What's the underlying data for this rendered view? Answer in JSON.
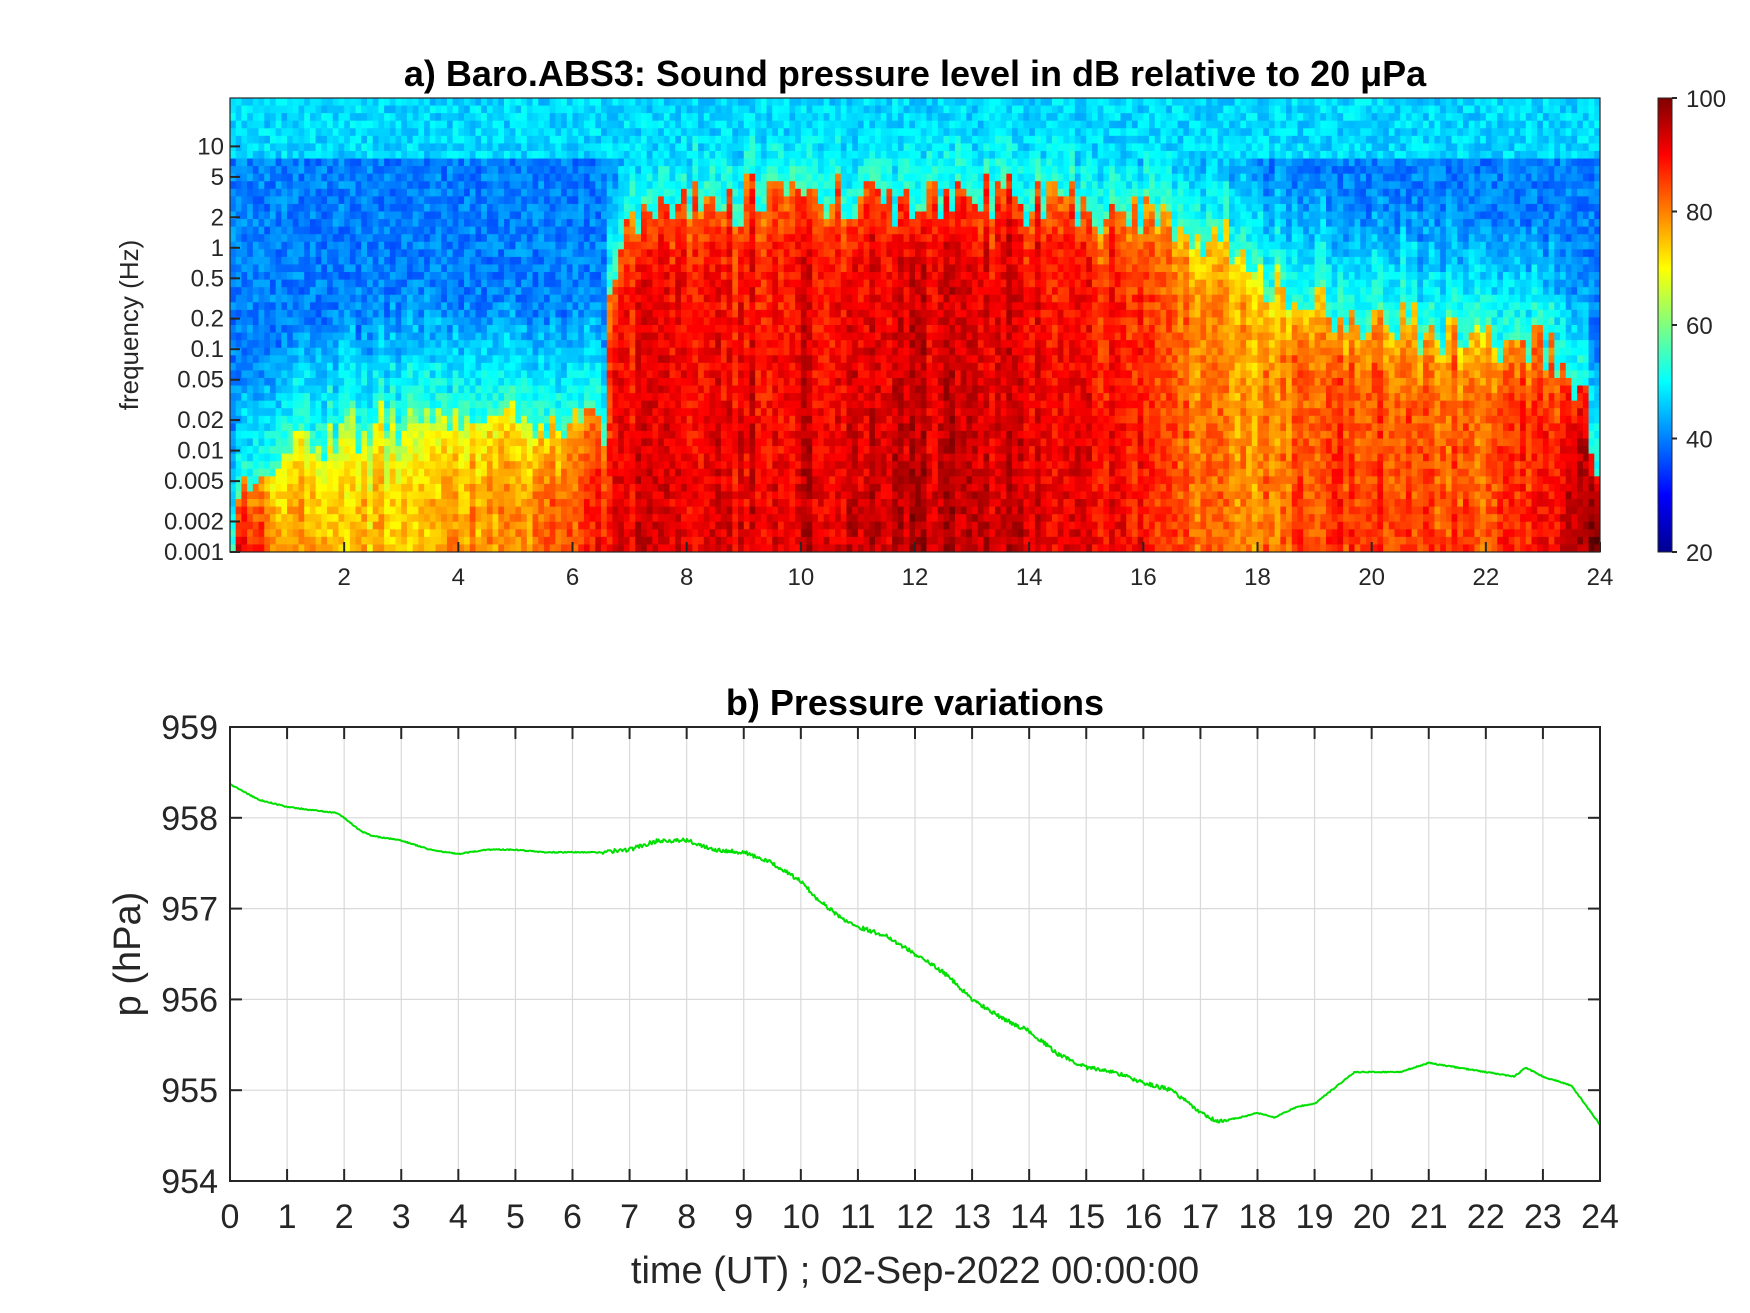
{
  "panel_a": {
    "title": "a) Baro.ABS3: Sound pressure level in dB relative to 20 μPa",
    "ylabel": "frequency (Hz)",
    "colorbar_ticks": [
      "100",
      "80",
      "60",
      "40",
      "20"
    ],
    "colormap": "jet"
  },
  "panel_b": {
    "title": "b) Pressure variations",
    "ylabel": "p (hPa)",
    "xlabel": "time (UT) ; 02-Sep-2022 00:00:00",
    "line_color": "#00e000"
  },
  "chart_data": [
    {
      "type": "heatmap",
      "title": "a) Baro.ABS3: Sound pressure level in dB relative to 20 μPa",
      "xlabel": "",
      "ylabel": "frequency (Hz)",
      "x_ticks": [
        "2",
        "4",
        "6",
        "8",
        "10",
        "12",
        "14",
        "16",
        "18",
        "20",
        "22",
        "24"
      ],
      "y_ticks": [
        "10",
        "5",
        "2",
        "1",
        "0.5",
        "0.2",
        "0.1",
        "0.05",
        "0.02",
        "0.01",
        "0.005",
        "0.002",
        "0.001"
      ],
      "xlim": [
        0,
        24
      ],
      "ylim": [
        0.001,
        30
      ],
      "y_scale": "log",
      "colorbar": {
        "range": [
          20,
          100
        ],
        "ticks": [
          100,
          80,
          60,
          40,
          20
        ],
        "colormap": "jet"
      },
      "time_h": [
        0,
        1,
        2,
        3,
        4,
        5,
        6,
        6.6,
        7,
        8,
        9,
        10,
        11,
        12,
        13,
        14,
        15,
        16,
        17,
        18,
        19,
        20,
        21,
        22,
        23,
        24
      ],
      "knee_freq_hz": [
        0.001,
        0.01,
        0.015,
        0.018,
        0.02,
        0.02,
        0.02,
        0.02,
        1.5,
        3,
        3,
        3,
        3,
        2.5,
        3,
        3,
        2.5,
        2,
        1.5,
        0.5,
        0.3,
        0.2,
        0.15,
        0.1,
        0.1,
        0.001
      ],
      "low_freq_level_db": [
        95,
        72,
        72,
        70,
        74,
        76,
        80,
        85,
        88,
        88,
        88,
        90,
        90,
        92,
        90,
        90,
        88,
        85,
        78,
        76,
        82,
        82,
        82,
        80,
        85,
        95
      ],
      "background_level_db": 40
    },
    {
      "type": "line",
      "title": "b) Pressure variations",
      "xlabel": "time (UT) ; 02-Sep-2022 00:00:00",
      "ylabel": "p (hPa)",
      "x_ticks": [
        "0",
        "1",
        "2",
        "3",
        "4",
        "5",
        "6",
        "7",
        "8",
        "9",
        "10",
        "11",
        "12",
        "13",
        "14",
        "15",
        "16",
        "17",
        "18",
        "19",
        "20",
        "21",
        "22",
        "23",
        "24"
      ],
      "y_ticks": [
        "959",
        "958",
        "957",
        "956",
        "955",
        "954"
      ],
      "xlim": [
        0,
        24
      ],
      "ylim": [
        954,
        959
      ],
      "grid": true,
      "series": [
        {
          "color": "#00e000",
          "x": [
            0,
            0.5,
            1,
            1.5,
            1.9,
            2.3,
            2.5,
            3,
            3.5,
            4,
            4.5,
            5,
            5.5,
            6,
            6.5,
            7,
            7.5,
            8,
            8.5,
            9,
            9.5,
            10,
            10.3,
            10.7,
            11,
            11.5,
            12,
            12.5,
            13,
            13.5,
            14,
            14.5,
            15,
            15.5,
            16,
            16.5,
            17,
            17.3,
            17.7,
            18,
            18.3,
            18.7,
            19,
            19.3,
            19.7,
            20,
            20.5,
            21,
            21.5,
            22,
            22.5,
            22.7,
            23,
            23.5,
            24
          ],
          "values": [
            958.37,
            958.2,
            958.12,
            958.08,
            958.05,
            957.85,
            957.8,
            957.75,
            957.65,
            957.6,
            957.65,
            957.65,
            957.62,
            957.62,
            957.62,
            957.65,
            957.75,
            957.75,
            957.65,
            957.62,
            957.5,
            957.3,
            957.1,
            956.9,
            956.8,
            956.7,
            956.5,
            956.3,
            956.0,
            955.8,
            955.65,
            955.4,
            955.25,
            955.2,
            955.08,
            955.0,
            954.75,
            954.65,
            954.7,
            954.75,
            954.7,
            954.82,
            954.85,
            955.0,
            955.2,
            955.2,
            955.2,
            955.3,
            955.25,
            955.2,
            955.15,
            955.25,
            955.15,
            955.05,
            954.62
          ]
        }
      ]
    }
  ]
}
